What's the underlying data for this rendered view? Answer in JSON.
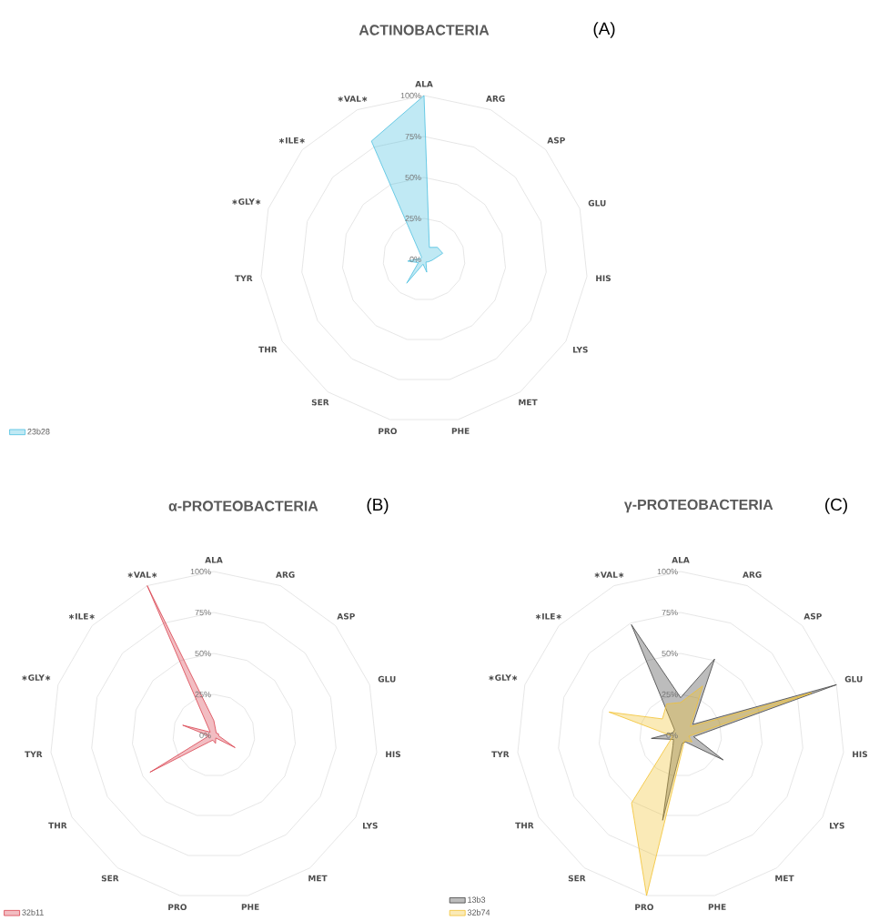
{
  "chart_data": [
    {
      "type": "radar",
      "title": "ACTINOBACTERIA",
      "annotations": [
        "(A)"
      ],
      "categories": [
        "ALA",
        "ARG",
        "ASP",
        "GLU",
        "HIS",
        "LYS",
        "MET",
        "PHE",
        "PRO",
        "SER",
        "THR",
        "TYR",
        "∗GLY∗",
        "∗ILE∗",
        "∗VAL∗"
      ],
      "series": [
        {
          "name": "23b28",
          "color": "#4bbfe0",
          "values": [
            100,
            8,
            11,
            12,
            5,
            3,
            2,
            8,
            3,
            18,
            4,
            10,
            2,
            2,
            79
          ]
        }
      ],
      "ylim": [
        0,
        100
      ],
      "yticks": [
        {
          "value": 0,
          "label": "0%"
        },
        {
          "value": 25,
          "label": "25%"
        },
        {
          "value": 50,
          "label": "50%"
        },
        {
          "value": 75,
          "label": "75%"
        },
        {
          "value": 100,
          "label": "100%"
        }
      ],
      "grid": true,
      "legend": "bottom left"
    },
    {
      "type": "radar",
      "title": "α-PROTEOBACTERIA",
      "annotations": [
        "(B)"
      ],
      "categories": [
        "ALA",
        "ARG",
        "ASP",
        "GLU",
        "HIS",
        "LYS",
        "MET",
        "PHE",
        "PRO",
        "SER",
        "THR",
        "TYR",
        "∗GLY∗",
        "∗ILE∗",
        "∗VAL∗"
      ],
      "series": [
        {
          "name": "32b11",
          "color": "#d9434f",
          "values": [
            9,
            3,
            2,
            3,
            3,
            15,
            2,
            5,
            3,
            5,
            45,
            3,
            20,
            3,
            100
          ]
        }
      ],
      "ylim": [
        0,
        100
      ],
      "yticks": [
        {
          "value": 0,
          "label": "0%"
        },
        {
          "value": 25,
          "label": "25%"
        },
        {
          "value": 50,
          "label": "50%"
        },
        {
          "value": 75,
          "label": "75%"
        },
        {
          "value": 100,
          "label": "100%"
        }
      ],
      "grid": true,
      "legend": "bottom left"
    },
    {
      "type": "radar",
      "title": "γ-PROTEOBACTERIA",
      "annotations": [
        "(C)"
      ],
      "categories": [
        "ALA",
        "ARG",
        "ASP",
        "GLU",
        "HIS",
        "LYS",
        "MET",
        "PHE",
        "PRO",
        "SER",
        "THR",
        "TYR",
        "∗GLY∗",
        "∗ILE∗",
        "∗VAL∗"
      ],
      "series": [
        {
          "name": "13b3",
          "color": "#404040",
          "values": [
            23,
            51,
            10,
            100,
            8,
            30,
            5,
            5,
            53,
            8,
            5,
            18,
            5,
            5,
            74
          ]
        },
        {
          "name": "32b74",
          "color": "#f2c230",
          "values": [
            20,
            33,
            8,
            84,
            5,
            8,
            4,
            7,
            100,
            51,
            8,
            5,
            46,
            15,
            21
          ]
        }
      ],
      "ylim": [
        0,
        100
      ],
      "yticks": [
        {
          "value": 0,
          "label": "0%"
        },
        {
          "value": 25,
          "label": "25%"
        },
        {
          "value": 50,
          "label": "50%"
        },
        {
          "value": 75,
          "label": "75%"
        },
        {
          "value": 100,
          "label": "100%"
        }
      ],
      "grid": true,
      "legend": "bottom left"
    }
  ]
}
